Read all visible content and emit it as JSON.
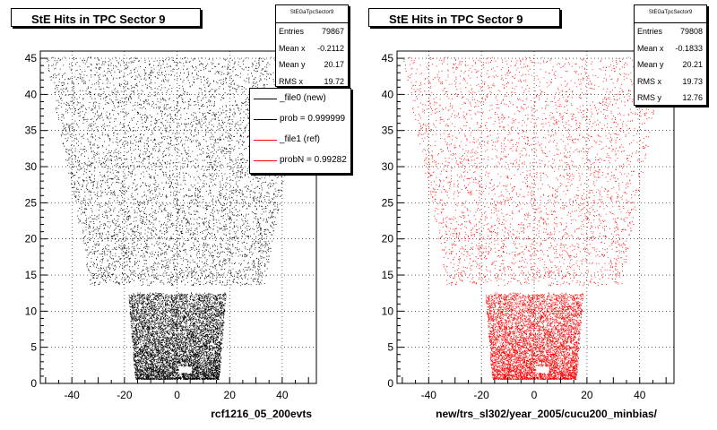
{
  "colors": {
    "new": "#000000",
    "ref": "#ff0000",
    "background": "#ffffff"
  },
  "legend": {
    "entries": [
      {
        "label": "_file0 (new)",
        "color": "#000000"
      },
      {
        "label": "prob = 0.999999",
        "color": "#000000"
      },
      {
        "label": "_file1 (ref)",
        "color": "#ff0000"
      },
      {
        "label": "probN = 0.99282",
        "color": "#ff0000"
      }
    ]
  },
  "chart_data": [
    {
      "type": "scatter",
      "title": "StE Hits in TPC Sector 9",
      "xlabel": "rcf1216_05_200evts",
      "ylabel": "",
      "xlim": [
        -52,
        53
      ],
      "ylim": [
        0,
        46
      ],
      "xticks": [
        -40,
        -20,
        0,
        20,
        40
      ],
      "yticks": [
        0,
        5,
        10,
        15,
        20,
        25,
        30,
        35,
        40,
        45
      ],
      "marker_color": "#000000",
      "grid": true,
      "stats": {
        "name": "StEGaTpcSector9",
        "rows": [
          {
            "key": "Entries",
            "value": "79867"
          },
          {
            "key": "Mean x",
            "value": "-0.2112"
          },
          {
            "key": "Mean y",
            "value": "20.17"
          },
          {
            "key": "RMS x",
            "value": "19.72"
          }
        ]
      }
    },
    {
      "type": "scatter",
      "title": "StE Hits in TPC Sector 9",
      "xlabel": "new/trs_sl302/year_2005/cucu200_minbias/",
      "ylabel": "",
      "xlim": [
        -52,
        53
      ],
      "ylim": [
        0,
        46
      ],
      "xticks": [
        -40,
        -20,
        0,
        20,
        40
      ],
      "yticks": [
        0,
        5,
        10,
        15,
        20,
        25,
        30,
        35,
        40,
        45
      ],
      "marker_color": "#ff0000",
      "grid": true,
      "stats": {
        "name": "StEGaTpcSector9",
        "rows": [
          {
            "key": "Entries",
            "value": "79808"
          },
          {
            "key": "Mean x",
            "value": "-0.1833"
          },
          {
            "key": "Mean y",
            "value": "20.21"
          },
          {
            "key": "RMS x",
            "value": "19.73"
          },
          {
            "key": "RMS y",
            "value": "12.76"
          }
        ]
      }
    }
  ]
}
